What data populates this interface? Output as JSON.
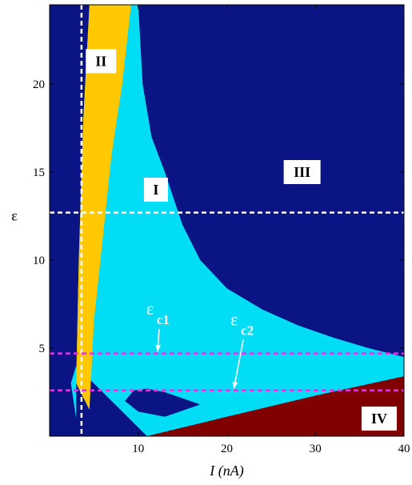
{
  "chart_data": {
    "type": "heatmap",
    "title": "",
    "xlabel": "I (nA)",
    "ylabel": "ε",
    "xlim": [
      0,
      40
    ],
    "ylim": [
      0,
      24.5
    ],
    "xticks": [
      10,
      20,
      30,
      40
    ],
    "yticks": [
      5,
      10,
      15,
      20
    ],
    "xtick_labels": [
      "10",
      "20",
      "30",
      "40"
    ],
    "ytick_labels": [
      "5",
      "10",
      "15",
      "20"
    ],
    "colors": {
      "III": "#0b1484",
      "I": "#00ddf5",
      "II": "#ffc800",
      "IV": "#800000",
      "dashed_white": "#ffffff",
      "dashed_magenta": "#e632e6"
    },
    "regions": [
      {
        "name": "I",
        "label_at": {
          "x": 12.0,
          "y": 14.0
        }
      },
      {
        "name": "II",
        "label_at": {
          "x": 5.8,
          "y": 21.3
        }
      },
      {
        "name": "III",
        "label_at": {
          "x": 28.5,
          "y": 15.0
        }
      },
      {
        "name": "IV",
        "label_at": {
          "x": 37.2,
          "y": 1.0
        }
      }
    ],
    "boundaries": {
      "I_III_upper": [
        [
          10.0,
          24.5
        ],
        [
          10.5,
          20.0
        ],
        [
          11.5,
          17.0
        ],
        [
          13.0,
          15.0
        ],
        [
          15.0,
          12.0
        ],
        [
          17.0,
          10.0
        ],
        [
          20.0,
          8.4
        ],
        [
          24.0,
          7.2
        ],
        [
          28.0,
          6.3
        ],
        [
          32.0,
          5.6
        ],
        [
          36.0,
          5.0
        ],
        [
          40.0,
          4.5
        ]
      ],
      "II_I": [
        [
          4.5,
          1.5
        ],
        [
          5.0,
          6.5
        ],
        [
          7.0,
          16.0
        ],
        [
          8.2,
          20.0
        ],
        [
          9.2,
          24.5
        ]
      ],
      "II_left": [
        [
          3.0,
          3.0
        ],
        [
          3.3,
          10.0
        ],
        [
          3.8,
          18.0
        ],
        [
          4.5,
          24.5
        ]
      ],
      "I_left_lower": [
        [
          3.0,
          1.0
        ],
        [
          2.4,
          3.0
        ],
        [
          3.0,
          4.0
        ]
      ],
      "IV_upper": [
        [
          11.0,
          0.0
        ],
        [
          20.0,
          1.1
        ],
        [
          30.0,
          2.3
        ],
        [
          40.0,
          3.4
        ]
      ],
      "III_lobe": [
        [
          8.5,
          2.0
        ],
        [
          9.5,
          2.6
        ],
        [
          11.0,
          2.7
        ],
        [
          13.0,
          2.5
        ],
        [
          17.0,
          1.8
        ],
        [
          13.0,
          1.1
        ],
        [
          10.0,
          1.4
        ],
        [
          8.5,
          2.0
        ]
      ]
    },
    "dashed_lines": [
      {
        "orientation": "vertical",
        "x": 3.6,
        "color": "white"
      },
      {
        "orientation": "horizontal",
        "y": 12.7,
        "color": "white"
      },
      {
        "orientation": "horizontal",
        "y": 4.7,
        "color": "magenta"
      },
      {
        "orientation": "horizontal",
        "y": 2.6,
        "color": "magenta"
      }
    ],
    "annotations": [
      {
        "text": "ε",
        "sub": "c1",
        "at": {
          "x": 12.0,
          "y": 6.9
        },
        "arrow_to": {
          "x": 12.2,
          "y": 4.8
        }
      },
      {
        "text": "ε",
        "sub": "c2",
        "at": {
          "x": 21.5,
          "y": 6.3
        },
        "arrow_to": {
          "x": 20.8,
          "y": 2.7
        }
      }
    ]
  }
}
